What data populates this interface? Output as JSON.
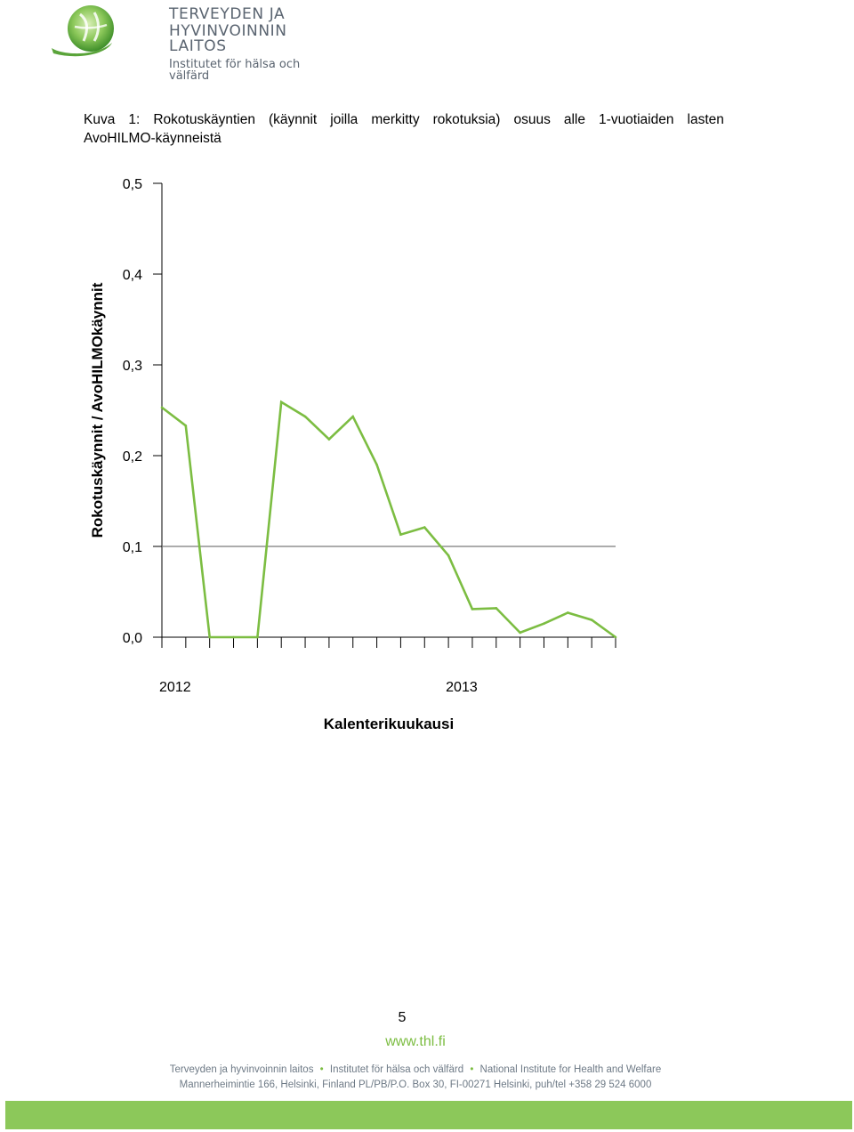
{
  "header": {
    "logo_line1": "TERVEYDEN JA",
    "logo_line2": "HYVINVOINNIN LAITOS",
    "logo_line3": "Institutet för hälsa och välfärd",
    "logo_icon": "thl-leaf-logo"
  },
  "caption": {
    "words": [
      "Kuva",
      "1:",
      "Rokotuskäyntien",
      "(käynnit",
      "joilla",
      "merkitty",
      "rokotuksia)",
      "osuus",
      "alle",
      "1-vuotiaiden",
      "lasten"
    ],
    "line2": "AvoHILMO-käynneistä"
  },
  "chart_data": {
    "type": "line",
    "title": "",
    "xlabel": "Kalenterikuukausi",
    "ylabel": "Rokotuskäynnit / AvoHILMOkäynnit",
    "ylim": [
      0.0,
      0.5
    ],
    "y_ticks": [
      "0,0",
      "0,1",
      "0,2",
      "0,3",
      "0,4",
      "0,5"
    ],
    "y_tick_values": [
      0.0,
      0.1,
      0.2,
      0.3,
      0.4,
      0.5
    ],
    "x_year_labels": [
      "2012",
      "2013"
    ],
    "reference_line": 0.1,
    "grid": false,
    "line_color": "#7cbd42",
    "series": [
      {
        "values": [
          0.253,
          0.233,
          0.0,
          0.0,
          0.0,
          0.259,
          0.243,
          0.218,
          0.243,
          0.19,
          0.113,
          0.121,
          0.09,
          0.031,
          0.032,
          0.005,
          0.015,
          0.027,
          0.019,
          0.0
        ]
      }
    ]
  },
  "footer": {
    "page_number": "5",
    "url": "www.thl.fi",
    "org_fi": "Terveyden ja hyvinvoinnin laitos",
    "org_sv": "Institutet för hälsa och välfärd",
    "org_en": "National Institute for Health and Welfare",
    "separator": "•",
    "address": "Mannerheimintie 166, Helsinki, Finland PL/PB/P.O. Box 30, FI-00271 Helsinki, puh/tel +358 29 524 6000"
  },
  "colors": {
    "accent_green": "#7cbd42",
    "footer_bar": "#8cc85a",
    "logo_text": "#5a6470"
  }
}
